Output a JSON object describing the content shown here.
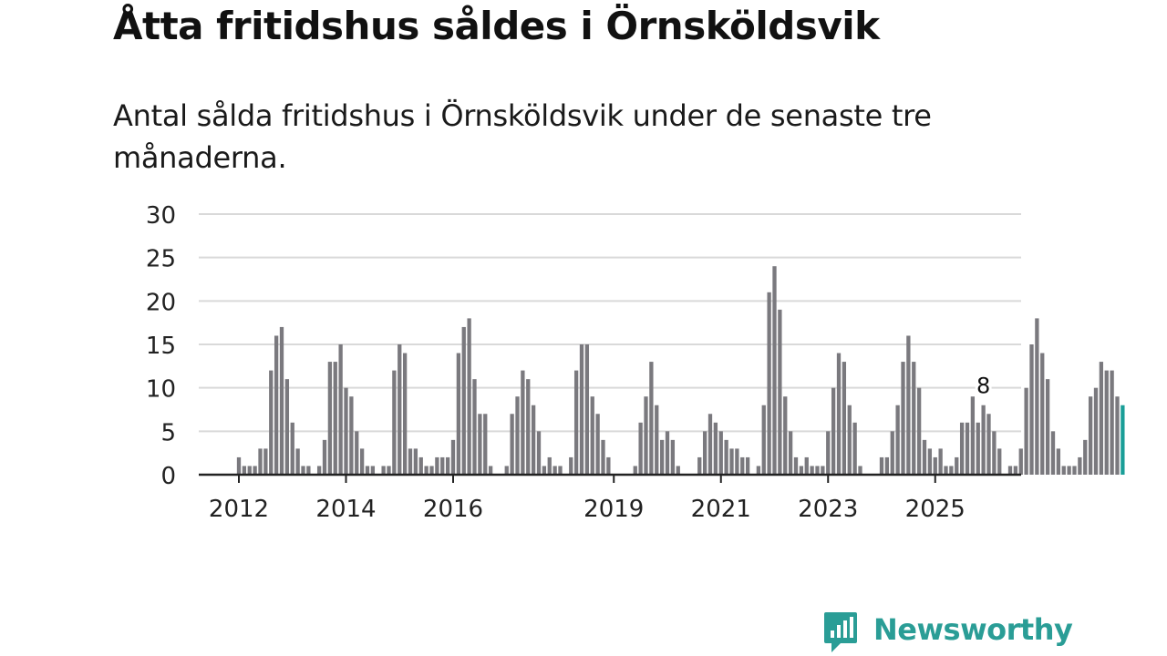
{
  "header": {
    "title": "Åtta fritidshus såldes i Örnsköldsvik",
    "subtitle": "Antal sålda fritidshus i Örnsköldsvik under de senaste tre månaderna."
  },
  "brand": {
    "name": "Newsworthy"
  },
  "colors": {
    "bar": "#7a797e",
    "highlight": "#1a9e98",
    "grid": "#d9d9d9",
    "axis": "#222222",
    "brand": "#2a9d96"
  },
  "chart_data": {
    "type": "bar",
    "title": "Åtta fritidshus såldes i Örnsköldsvik",
    "subtitle": "Antal sålda fritidshus i Örnsköldsvik under de senaste tre månaderna.",
    "xlabel": "",
    "ylabel": "",
    "ylim": [
      0,
      30
    ],
    "yticks": [
      "0",
      "5",
      "10",
      "15",
      "20",
      "25",
      "30"
    ],
    "xtick_labels": [
      {
        "label": "2012",
        "index": 0
      },
      {
        "label": "2014",
        "index": 20
      },
      {
        "label": "2016",
        "index": 40
      },
      {
        "label": "2019",
        "index": 70
      },
      {
        "label": "2021",
        "index": 90
      },
      {
        "label": "2023",
        "index": 110
      },
      {
        "label": "2025",
        "index": 130
      }
    ],
    "grid": true,
    "annotation": {
      "text": "8",
      "index": 139
    },
    "values": [
      2,
      1,
      1,
      1,
      3,
      3,
      12,
      16,
      17,
      11,
      6,
      3,
      1,
      1,
      0,
      1,
      4,
      13,
      13,
      15,
      10,
      9,
      5,
      3,
      1,
      1,
      0,
      1,
      1,
      12,
      15,
      14,
      3,
      3,
      2,
      1,
      1,
      2,
      2,
      2,
      4,
      14,
      17,
      18,
      11,
      7,
      7,
      1,
      0,
      0,
      1,
      7,
      9,
      12,
      11,
      8,
      5,
      1,
      2,
      1,
      1,
      0,
      2,
      12,
      15,
      15,
      9,
      7,
      4,
      2,
      0,
      0,
      0,
      0,
      1,
      6,
      9,
      13,
      8,
      4,
      5,
      4,
      1,
      0,
      0,
      0,
      2,
      5,
      7,
      6,
      5,
      4,
      3,
      3,
      2,
      2,
      0,
      1,
      8,
      21,
      24,
      19,
      9,
      5,
      2,
      1,
      2,
      1,
      1,
      1,
      5,
      10,
      14,
      13,
      8,
      6,
      1,
      0,
      0,
      0,
      2,
      2,
      5,
      8,
      13,
      16,
      13,
      10,
      4,
      3,
      2,
      3,
      1,
      1,
      2,
      6,
      6,
      9,
      6,
      8,
      7,
      5,
      3,
      0,
      1,
      1,
      3,
      10,
      15,
      18,
      14,
      11,
      5,
      3,
      1,
      1,
      1,
      2,
      4,
      9,
      10,
      13,
      12,
      12,
      9,
      8
    ]
  }
}
